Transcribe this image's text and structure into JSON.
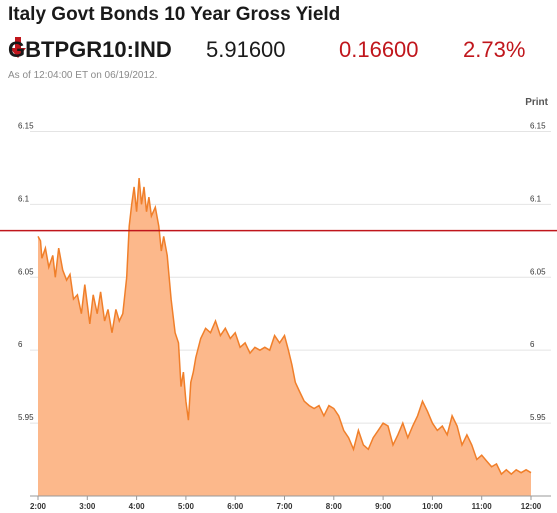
{
  "header": {
    "title": "Italy Govt Bonds 10 Year Gross Yield",
    "ticker": "GBTPGR10:IND",
    "price": "5.91600",
    "change": "0.16600",
    "change_pct": "2.73%",
    "direction": "down",
    "as_of": "As of 12:04:00 ET on 06/19/2012."
  },
  "toolbar": {
    "print_label": "Print"
  },
  "colors": {
    "down": "#c0161c",
    "line": "#f07f2a",
    "fill": "#fcb88b",
    "ref_line": "#c0161c",
    "grid": "#e4e4e4"
  },
  "chart_data": {
    "type": "area",
    "title": "Italy Govt Bonds 10 Year Gross Yield",
    "xlabel": "",
    "ylabel": "",
    "x_ticks": [
      "2:00",
      "3:00",
      "4:00",
      "5:00",
      "6:00",
      "7:00",
      "8:00",
      "9:00",
      "10:00",
      "11:00",
      "12:00"
    ],
    "y_ticks": [
      "5.95",
      "6",
      "6.05",
      "6.1",
      "6.15"
    ],
    "xlim": [
      2.0,
      12.0
    ],
    "ylim": [
      5.9,
      6.175
    ],
    "grid": true,
    "reference_line": {
      "value": 6.082,
      "label": ""
    },
    "series": [
      {
        "name": "",
        "x": [
          2.0,
          2.05,
          2.08,
          2.15,
          2.22,
          2.3,
          2.35,
          2.42,
          2.5,
          2.58,
          2.65,
          2.72,
          2.8,
          2.88,
          2.95,
          3.05,
          3.12,
          3.2,
          3.27,
          3.35,
          3.42,
          3.5,
          3.58,
          3.65,
          3.72,
          3.8,
          3.85,
          3.9,
          3.95,
          4.0,
          4.05,
          4.1,
          4.15,
          4.2,
          4.25,
          4.3,
          4.38,
          4.45,
          4.5,
          4.55,
          4.62,
          4.7,
          4.78,
          4.85,
          4.9,
          4.95,
          5.0,
          5.05,
          5.1,
          5.15,
          5.2,
          5.3,
          5.4,
          5.5,
          5.6,
          5.7,
          5.8,
          5.9,
          6.0,
          6.1,
          6.2,
          6.3,
          6.4,
          6.5,
          6.6,
          6.7,
          6.8,
          6.9,
          7.0,
          7.08,
          7.15,
          7.22,
          7.3,
          7.4,
          7.5,
          7.6,
          7.7,
          7.8,
          7.9,
          8.0,
          8.1,
          8.2,
          8.3,
          8.4,
          8.5,
          8.6,
          8.7,
          8.8,
          8.9,
          9.0,
          9.1,
          9.2,
          9.3,
          9.4,
          9.5,
          9.6,
          9.7,
          9.8,
          9.9,
          10.0,
          10.1,
          10.2,
          10.3,
          10.4,
          10.5,
          10.6,
          10.7,
          10.8,
          10.9,
          11.0,
          11.1,
          11.2,
          11.3,
          11.4,
          11.5,
          11.6,
          11.7,
          11.8,
          11.9,
          12.0
        ],
        "values": [
          6.078,
          6.075,
          6.063,
          6.07,
          6.057,
          6.065,
          6.05,
          6.07,
          6.055,
          6.048,
          6.052,
          6.035,
          6.038,
          6.025,
          6.045,
          6.018,
          6.038,
          6.025,
          6.04,
          6.02,
          6.028,
          6.012,
          6.028,
          6.02,
          6.025,
          6.05,
          6.085,
          6.1,
          6.112,
          6.095,
          6.118,
          6.1,
          6.112,
          6.095,
          6.105,
          6.092,
          6.098,
          6.085,
          6.068,
          6.078,
          6.065,
          6.035,
          6.012,
          6.005,
          5.975,
          5.985,
          5.965,
          5.952,
          5.978,
          5.985,
          5.995,
          6.008,
          6.015,
          6.012,
          6.02,
          6.01,
          6.015,
          6.008,
          6.012,
          6.002,
          6.005,
          5.998,
          6.002,
          6.0,
          6.002,
          6.0,
          6.01,
          6.005,
          6.01,
          6.0,
          5.99,
          5.978,
          5.972,
          5.965,
          5.962,
          5.96,
          5.962,
          5.955,
          5.962,
          5.96,
          5.955,
          5.945,
          5.94,
          5.932,
          5.945,
          5.935,
          5.932,
          5.94,
          5.945,
          5.95,
          5.948,
          5.935,
          5.942,
          5.95,
          5.94,
          5.948,
          5.955,
          5.965,
          5.958,
          5.95,
          5.945,
          5.948,
          5.942,
          5.955,
          5.948,
          5.935,
          5.942,
          5.935,
          5.925,
          5.928,
          5.924,
          5.92,
          5.922,
          5.915,
          5.918,
          5.915,
          5.918,
          5.916,
          5.918,
          5.916
        ]
      }
    ]
  }
}
